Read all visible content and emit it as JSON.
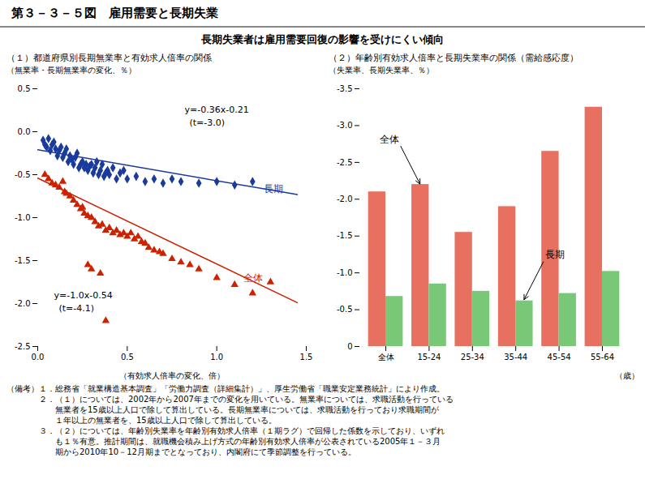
{
  "title": "第３－３－５図　雇用需要と長期失業",
  "subtitle": "長期失業者は雇用需要回復の影響を受けにくい傾向",
  "notes": [
    "（備考）１．総務省「就業構造基本調査」「労働力調査（詳細集計）」、厚生労働省「職業安定業務統計」により作成。",
    "　　　　２．（１）については、2002年から2007年までの変化を用いている。無業率については、求職活動を行っている",
    "　　　　　　無業者を15歳以上人口で除して算出している。長期無業率については、求職活動を行っており求職期間が",
    "　　　　　　１年以上の無業者を、15歳以上人口で除して算出している。",
    "　　　　３．（２）については、年齢別失業率を年齢別有効求人倍率（１期ラグ）で回帰した係数を示しており、いずれ",
    "　　　　　　も１％有意。推計期間は、就職機会積み上げ方式の年齢別有効求人倍率が公表されている2005年１－３月",
    "　　　　　　期から2010年10－12月期までとなっており、内閣府にて季節調整を行っている。"
  ],
  "chart_data": [
    {
      "type": "scatter",
      "title": "（１）都道府県別長期無業率と有効求人倍率の関係",
      "x_label": "（有効求人倍率の変化、倍）",
      "y_label": "（無業率・長期無業率の変化、％）",
      "xlim": [
        0.0,
        1.5
      ],
      "ylim": [
        -2.5,
        0.5
      ],
      "xticks": [
        {
          "value": 0.0,
          "label": "0.0"
        },
        0.5,
        {
          "value": 1.0,
          "label": "1.0"
        },
        1.5
      ],
      "yticks": [
        0.5,
        {
          "value": 0.0,
          "label": "0.0"
        },
        -0.5,
        {
          "value": -1.0,
          "label": "-1.0"
        },
        -1.5,
        {
          "value": -2.0,
          "label": "-2.0"
        },
        -2.5
      ],
      "grid": false,
      "series": [
        {
          "type": "scatter",
          "color": "#1a3a9c",
          "marker": "diamond",
          "x": [
            0.03,
            0.04,
            0.05,
            0.06,
            0.07,
            0.08,
            0.09,
            0.1,
            0.11,
            0.12,
            0.13,
            0.14,
            0.15,
            0.16,
            0.17,
            0.18,
            0.19,
            0.2,
            0.21,
            0.22,
            0.23,
            0.24,
            0.25,
            0.26,
            0.27,
            0.28,
            0.29,
            0.3,
            0.31,
            0.32,
            0.33,
            0.34,
            0.35,
            0.36,
            0.37,
            0.38,
            0.39,
            0.4,
            0.42,
            0.44,
            0.46,
            0.48,
            0.5,
            0.55,
            0.6,
            0.65,
            0.7,
            0.75,
            0.8,
            0.9,
            1.0,
            1.1,
            1.2
          ],
          "values": [
            -0.1,
            -0.15,
            -0.18,
            -0.08,
            -0.22,
            -0.15,
            -0.12,
            -0.2,
            -0.28,
            -0.22,
            -0.18,
            -0.3,
            -0.25,
            -0.2,
            -0.35,
            -0.28,
            -0.32,
            -0.38,
            -0.3,
            -0.25,
            -0.42,
            -0.38,
            -0.35,
            -0.42,
            -0.38,
            -0.45,
            -0.4,
            -0.38,
            -0.48,
            -0.42,
            -0.35,
            -0.5,
            -0.45,
            -0.38,
            -0.52,
            -0.48,
            -0.45,
            -0.5,
            -0.42,
            -0.55,
            -0.48,
            -0.45,
            -0.55,
            -0.52,
            -0.58,
            -0.55,
            -0.6,
            -0.55,
            -0.58,
            -0.6,
            -0.58,
            -0.62,
            -0.58
          ]
        },
        {
          "type": "scatter",
          "color": "#cc2200",
          "marker": "triangle",
          "x": [
            0.04,
            0.06,
            0.08,
            0.1,
            0.12,
            0.14,
            0.15,
            0.16,
            0.18,
            0.2,
            0.22,
            0.24,
            0.25,
            0.26,
            0.28,
            0.3,
            0.32,
            0.34,
            0.36,
            0.38,
            0.4,
            0.42,
            0.44,
            0.46,
            0.48,
            0.5,
            0.52,
            0.54,
            0.56,
            0.58,
            0.6,
            0.62,
            0.65,
            0.68,
            0.7,
            0.75,
            0.8,
            0.85,
            0.9,
            1.0,
            1.1,
            1.2,
            1.3,
            0.28,
            0.3,
            0.35,
            0.38
          ],
          "values": [
            -0.5,
            -0.55,
            -0.6,
            -0.62,
            -0.65,
            -0.58,
            -0.7,
            -0.72,
            -0.75,
            -0.8,
            -0.85,
            -0.9,
            -0.88,
            -0.95,
            -0.98,
            -1.0,
            -1.05,
            -1.1,
            -1.08,
            -1.15,
            -1.12,
            -1.18,
            -1.15,
            -1.2,
            -1.18,
            -1.22,
            -1.18,
            -1.25,
            -1.22,
            -1.28,
            -1.3,
            -1.35,
            -1.38,
            -1.4,
            -1.42,
            -1.48,
            -1.52,
            -1.55,
            -1.6,
            -1.7,
            -1.78,
            -1.88,
            -1.75,
            -1.55,
            -1.6,
            -1.65,
            -2.2
          ]
        },
        {
          "type": "line",
          "color": "#1a3a9c",
          "x": [
            0.0,
            1.45
          ],
          "values": [
            -0.21,
            -0.732
          ]
        },
        {
          "type": "line",
          "color": "#cc2200",
          "x": [
            0.0,
            1.45
          ],
          "values": [
            -0.54,
            -1.99
          ]
        }
      ],
      "annotations": [
        {
          "text": "y=-0.36x-0.21"
        },
        {
          "text": "(t=-3.0)"
        },
        {
          "text": "y=-1.0x-0.54"
        },
        {
          "text": "(t=-4.1)"
        },
        {
          "text": "長期",
          "x": 1.26,
          "y": -0.67,
          "color": "#1a3a9c"
        },
        {
          "text": "全体",
          "x": 1.15,
          "y": -1.7,
          "color": "#cc2200"
        }
      ]
    },
    {
      "type": "bar",
      "title": "（２）年齢別有効求人倍率と長期失業率の関係（需給感応度）",
      "x_label": "（歳）",
      "y_label": "（失業率、長期失業率、％）",
      "categories": [
        "全体",
        "15-24",
        "25-34",
        "35-44",
        "45-54",
        "55-64"
      ],
      "series": [
        {
          "color": "#e87060",
          "values": [
            -2.1,
            -2.2,
            -1.55,
            -1.9,
            -2.65,
            -3.25
          ]
        },
        {
          "color": "#78c878",
          "values": [
            -0.68,
            -0.85,
            -0.75,
            -0.62,
            -0.72,
            -1.02
          ]
        }
      ],
      "ylim": [
        0.0,
        -3.5
      ],
      "yticks": [
        -3.5,
        {
          "value": -3.0,
          "label": "-3.0"
        },
        -2.5,
        {
          "value": -2.0,
          "label": "-2.0"
        },
        -1.5,
        {
          "value": -1.0,
          "label": "-1.0"
        },
        -0.5,
        0
      ],
      "grid": false,
      "annotations": [
        {
          "text": "全体",
          "x": "15-24",
          "y": -2.2
        },
        {
          "text": "長期",
          "x": "35-44",
          "y": -0.63
        }
      ]
    }
  ]
}
